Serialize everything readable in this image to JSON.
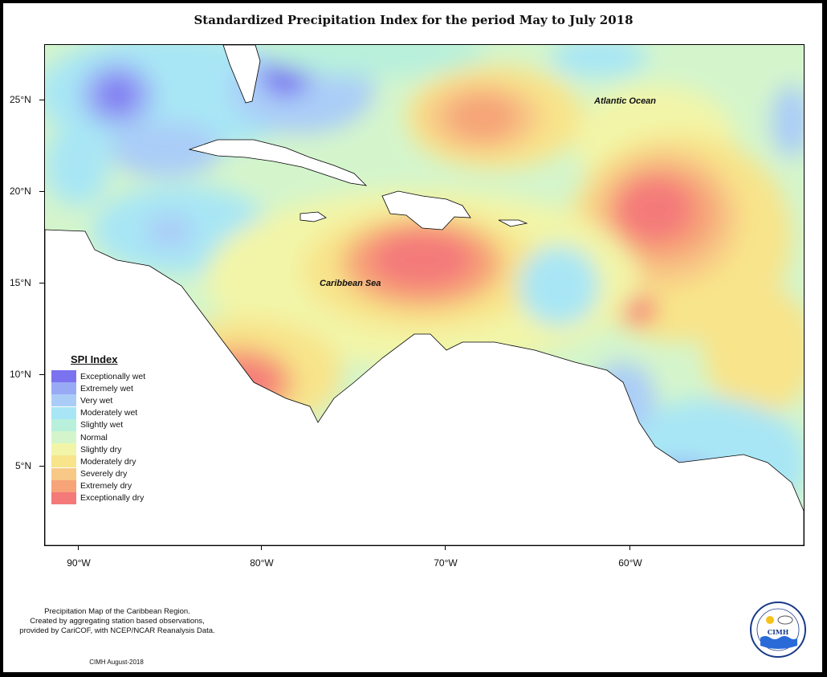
{
  "title": "Standardized Precipitation Index for the period May to July 2018",
  "axes": {
    "lat_ticks": [
      "25°N",
      "20°N",
      "15°N",
      "10°N",
      "5°N"
    ],
    "lon_ticks": [
      "90°W",
      "80°W",
      "70°W",
      "60°W"
    ]
  },
  "map_labels": {
    "atlantic": "Atlantic Ocean",
    "caribbean": "Caribbean Sea"
  },
  "legend": {
    "title": "SPI Index",
    "items": [
      {
        "label": "Exceptionally wet",
        "color": "#7b72f0"
      },
      {
        "label": "Extremely wet",
        "color": "#99aaf5"
      },
      {
        "label": "Very wet",
        "color": "#aacdf8"
      },
      {
        "label": "Moderately wet",
        "color": "#a8e6f5"
      },
      {
        "label": "Slightly wet",
        "color": "#b8f0dc"
      },
      {
        "label": "Normal",
        "color": "#d4f5cc"
      },
      {
        "label": "Slightly dry",
        "color": "#f2f5a8"
      },
      {
        "label": "Moderately dry",
        "color": "#f8e48a"
      },
      {
        "label": "Severely dry",
        "color": "#f8c886"
      },
      {
        "label": "Extremely dry",
        "color": "#f6a478"
      },
      {
        "label": "Exceptionally dry",
        "color": "#f47a7a"
      }
    ]
  },
  "caption": {
    "line1": "Precipitation Map of the Caribbean Region.",
    "line2": "Created by aggregating station based observations,",
    "line3": "provided by CariCOF, with NCEP/NCAR Reanalysis Data."
  },
  "credit": "CIMH August-2018",
  "logo": {
    "text": "CIMH",
    "icon": "cimh-logo-icon"
  }
}
